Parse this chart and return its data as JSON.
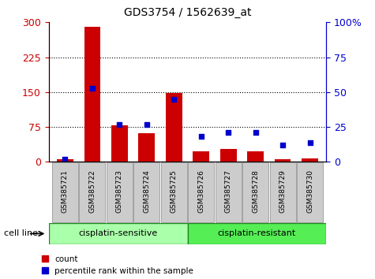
{
  "title": "GDS3754 / 1562639_at",
  "samples": [
    "GSM385721",
    "GSM385722",
    "GSM385723",
    "GSM385724",
    "GSM385725",
    "GSM385726",
    "GSM385727",
    "GSM385728",
    "GSM385729",
    "GSM385730"
  ],
  "counts": [
    5,
    291,
    78,
    62,
    148,
    22,
    28,
    22,
    5,
    8
  ],
  "percentile_ranks": [
    2,
    53,
    27,
    27,
    45,
    18,
    21,
    21,
    12,
    14
  ],
  "group_labels": [
    "cisplatin-sensitive",
    "cisplatin-resistant"
  ],
  "group_split": 5,
  "bar_color": "#cc0000",
  "marker_color": "#0000cc",
  "left_yticks": [
    0,
    75,
    150,
    225,
    300
  ],
  "right_yticks": [
    0,
    25,
    50,
    75,
    100
  ],
  "left_ylim": [
    0,
    300
  ],
  "right_ylim": [
    0,
    100
  ],
  "grid_vals": [
    75,
    150,
    225
  ],
  "group1_color": "#aaffaa",
  "group2_color": "#55ee55",
  "xtick_box_color": "#cccccc",
  "tick_color_left": "#cc0000",
  "tick_color_right": "#0000cc"
}
